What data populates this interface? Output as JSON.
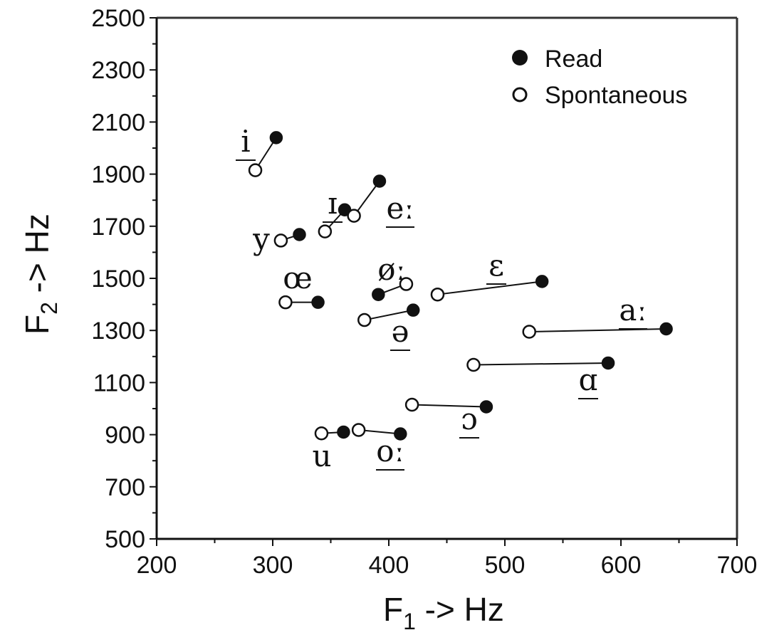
{
  "chart_data": {
    "type": "scatter",
    "xlabel": "F1 -> Hz",
    "xlabel_main": "F",
    "xlabel_sub": "1",
    "xlabel_rest": " -> Hz",
    "ylabel": "F2 -> Hz",
    "ylabel_main": "F",
    "ylabel_sub": "2",
    "ylabel_rest": " -> Hz",
    "xlim": [
      200,
      700
    ],
    "ylim": [
      500,
      2500
    ],
    "xticks": [
      "200",
      "300",
      "400",
      "500",
      "600",
      "700"
    ],
    "yticks": [
      "500",
      "700",
      "900",
      "1100",
      "1300",
      "1500",
      "1700",
      "1900",
      "2100",
      "2300",
      "2500"
    ],
    "grid": false,
    "legend_position": "top-right",
    "series": [
      {
        "name": "Read",
        "marker": "filled-circle"
      },
      {
        "name": "Spontaneous",
        "marker": "open-circle"
      }
    ],
    "vowels": [
      {
        "label": "i",
        "underline": true,
        "read": [
          303,
          2040
        ],
        "spontaneous": [
          285,
          1915
        ]
      },
      {
        "label": "y",
        "underline": false,
        "read": [
          323,
          1668
        ],
        "spontaneous": [
          307,
          1645
        ]
      },
      {
        "label": "ɪ",
        "underline": true,
        "read": [
          362,
          1763
        ],
        "spontaneous": [
          345,
          1680
        ]
      },
      {
        "label": "eː",
        "underline": true,
        "read": [
          392,
          1873
        ],
        "spontaneous": [
          370,
          1740
        ]
      },
      {
        "label": "œ",
        "underline": false,
        "read": [
          339,
          1408
        ],
        "spontaneous": [
          311,
          1408
        ]
      },
      {
        "label": "øː",
        "underline": false,
        "read": [
          391,
          1438
        ],
        "spontaneous": [
          415,
          1478
        ]
      },
      {
        "label": "ə",
        "underline": true,
        "read": [
          421,
          1378
        ],
        "spontaneous": [
          379,
          1340
        ]
      },
      {
        "label": "ɛ",
        "underline": true,
        "read": [
          532,
          1488
        ],
        "spontaneous": [
          442,
          1438
        ]
      },
      {
        "label": "aː",
        "underline": true,
        "read": [
          639,
          1306
        ],
        "spontaneous": [
          521,
          1295
        ]
      },
      {
        "label": "ɑ",
        "underline": true,
        "read": [
          589,
          1175
        ],
        "spontaneous": [
          473,
          1168
        ]
      },
      {
        "label": "ɔ",
        "underline": true,
        "read": [
          484,
          1007
        ],
        "spontaneous": [
          420,
          1015
        ]
      },
      {
        "label": "u",
        "underline": false,
        "read": [
          361,
          910
        ],
        "spontaneous": [
          342,
          905
        ]
      },
      {
        "label": "oː",
        "underline": true,
        "read": [
          410,
          903
        ],
        "spontaneous": [
          374,
          918
        ]
      }
    ]
  },
  "colors": {
    "ink": "#111111",
    "frame": "#333333",
    "background": "#ffffff"
  }
}
